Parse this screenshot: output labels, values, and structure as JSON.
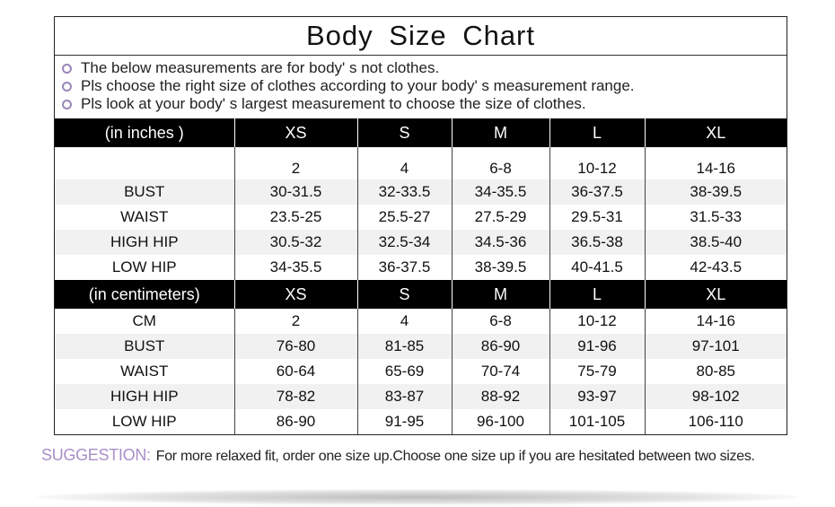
{
  "title": "Body Size Chart",
  "notes": [
    "The below measurements are for  body' s not clothes.",
    "Pls choose the right size of clothes according to your body' s  measurement range.",
    "Pls look  at your body' s  largest measurement to choose the size of clothes."
  ],
  "sizes": [
    "XS",
    "S",
    "M",
    "L",
    "XL"
  ],
  "inches": {
    "header": "(in  inches )",
    "rows": [
      {
        "label": "",
        "values": [
          "2",
          "4",
          "6-8",
          "10-12",
          "14-16"
        ]
      },
      {
        "label": "BUST",
        "values": [
          "30-31.5",
          "32-33.5",
          "34-35.5",
          "36-37.5",
          "38-39.5"
        ]
      },
      {
        "label": "WAIST",
        "values": [
          "23.5-25",
          "25.5-27",
          "27.5-29",
          "29.5-31",
          "31.5-33"
        ]
      },
      {
        "label": "HIGH HIP",
        "values": [
          "30.5-32",
          "32.5-34",
          "34.5-36",
          "36.5-38",
          "38.5-40"
        ]
      },
      {
        "label": "LOW HIP",
        "values": [
          "34-35.5",
          "36-37.5",
          "38-39.5",
          "40-41.5",
          "42-43.5"
        ]
      }
    ]
  },
  "centimeters": {
    "header": "(in centimeters)",
    "rows": [
      {
        "label": "CM",
        "values": [
          "2",
          "4",
          "6-8",
          "10-12",
          "14-16"
        ]
      },
      {
        "label": "BUST",
        "values": [
          "76-80",
          "81-85",
          "86-90",
          "91-96",
          "97-101"
        ]
      },
      {
        "label": "WAIST",
        "values": [
          "60-64",
          "65-69",
          "70-74",
          "75-79",
          "80-85"
        ]
      },
      {
        "label": "HIGH HIP",
        "values": [
          "78-82",
          "83-87",
          "88-92",
          "93-97",
          "98-102"
        ]
      },
      {
        "label": "LOW HIP",
        "values": [
          "86-90",
          "91-95",
          "96-100",
          "101-105",
          "106-110"
        ]
      }
    ]
  },
  "suggestion": {
    "label": "SUGGESTION:",
    "text": "For more relaxed fit, order one size up.Choose one size up if you are hesitated between two sizes."
  },
  "colors": {
    "accent": "#a98fc9",
    "header_bg": "#000000",
    "stripe": "#f1f1f1"
  }
}
